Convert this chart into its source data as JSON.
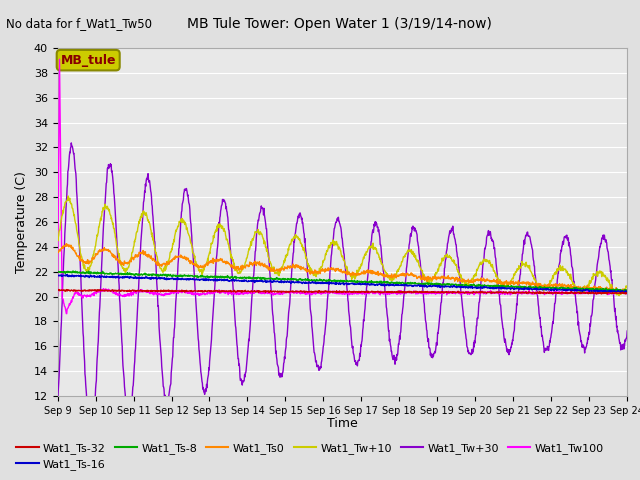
{
  "title": "MB Tule Tower: Open Water 1 (3/19/14-now)",
  "no_data_text": "No data for f_Wat1_Tw50",
  "xlabel": "Time",
  "ylabel": "Temperature (C)",
  "ylim": [
    12,
    40
  ],
  "yticks": [
    12,
    14,
    16,
    18,
    20,
    22,
    24,
    26,
    28,
    30,
    32,
    34,
    36,
    38,
    40
  ],
  "xtick_labels": [
    "Sep 9",
    "Sep 10",
    "Sep 11",
    "Sep 12",
    "Sep 13",
    "Sep 14",
    "Sep 15",
    "Sep 16",
    "Sep 17",
    "Sep 18",
    "Sep 19",
    "Sep 20",
    "Sep 21",
    "Sep 22",
    "Sep 23",
    "Sep 24"
  ],
  "background_color": "#e0e0e0",
  "plot_bg_color": "#e8e8e8",
  "legend_box_color": "#cccc00",
  "legend_box_text": "MB_tule",
  "legend_box_text_color": "#880000",
  "series_colors": {
    "Wat1_Ts-32": "#cc0000",
    "Wat1_Ts-16": "#0000cc",
    "Wat1_Ts-8": "#00aa00",
    "Wat1_Ts0": "#ff8800",
    "Wat1_Tw+10": "#cccc00",
    "Wat1_Tw+30": "#8800cc",
    "Wat1_Tw100": "#ff00ff"
  }
}
